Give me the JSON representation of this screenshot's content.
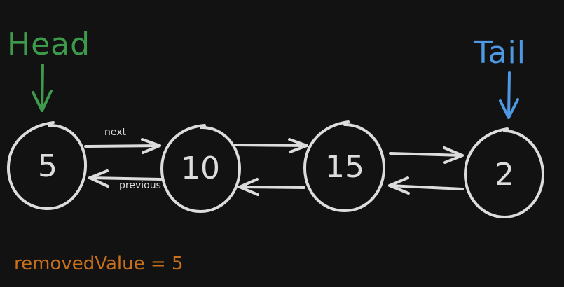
{
  "pointers": {
    "head_label": "Head",
    "tail_label": "Tail"
  },
  "nodes": [
    {
      "value": "5"
    },
    {
      "value": "10"
    },
    {
      "value": "15"
    },
    {
      "value": "2"
    }
  ],
  "edge_labels": {
    "next": "next",
    "previous": "previous"
  },
  "status": {
    "removed_text": "removedValue = 5"
  },
  "colors": {
    "background": "#121212",
    "stroke": "#dcdcdc",
    "head": "#3d9a4a",
    "tail": "#4f98e3",
    "removed": "#c8701c"
  }
}
